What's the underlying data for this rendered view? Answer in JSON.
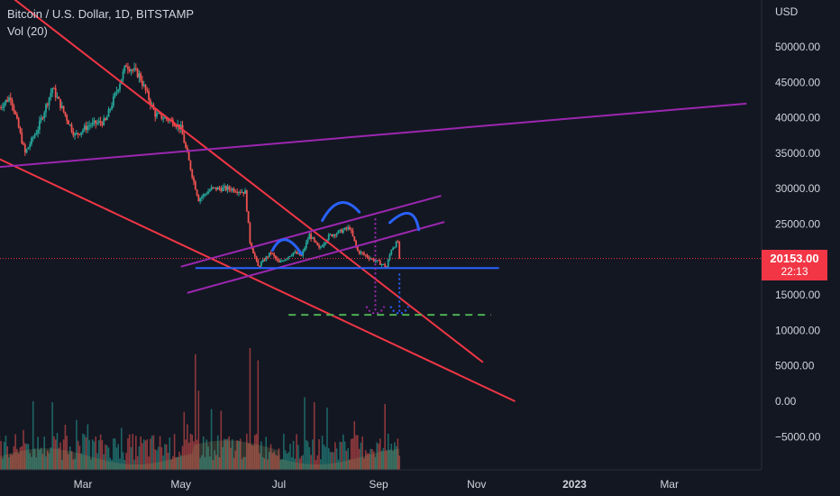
{
  "header": {
    "symbol": "Bitcoin / U.S. Dollar, 1D, BITSTAMP",
    "volume_indicator": "Vol (20)"
  },
  "axis": {
    "currency": "USD"
  },
  "price_badge": {
    "price": "20153.00",
    "countdown": "22:13",
    "color": "#f23645"
  },
  "colors": {
    "background": "#131722",
    "up": "#26a69a",
    "down": "#ef5350",
    "channel": "#f23645",
    "trend_purple": "#9c27b0",
    "support_blue": "#2962ff",
    "target_green": "#4caf50"
  },
  "chart_data": {
    "type": "candlestick",
    "title": "Bitcoin / U.S. Dollar, 1D, BITSTAMP",
    "ylabel": "USD",
    "ylim": [
      -8000,
      56000
    ],
    "yticks": [
      "50000.00",
      "45000.00",
      "40000.00",
      "35000.00",
      "30000.00",
      "25000.00",
      "20000.00",
      "15000.00",
      "10000.00",
      "5000.00",
      "0.00",
      "−5000.00"
    ],
    "ytick_values": [
      50000,
      45000,
      40000,
      35000,
      30000,
      25000,
      20000,
      15000,
      10000,
      5000,
      0,
      -5000
    ],
    "xticks": [
      {
        "label": "Mar",
        "date": "2022-03-01"
      },
      {
        "label": "May",
        "date": "2022-05-01"
      },
      {
        "label": "Jul",
        "date": "2022-07-01"
      },
      {
        "label": "Sep",
        "date": "2022-09-01"
      },
      {
        "label": "Nov",
        "date": "2022-11-01"
      },
      {
        "label": "2023",
        "date": "2023-01-01"
      },
      {
        "label": "Mar",
        "date": "2023-03-01"
      }
    ],
    "x_range": [
      "2022-01-08",
      "2023-04-18"
    ],
    "grid": false,
    "last_price": 20153,
    "price_path": [
      {
        "date": "2022-01-08",
        "price": 41500
      },
      {
        "date": "2022-01-15",
        "price": 43000
      },
      {
        "date": "2022-01-24",
        "price": 35000
      },
      {
        "date": "2022-02-01",
        "price": 38500
      },
      {
        "date": "2022-02-10",
        "price": 44200
      },
      {
        "date": "2022-02-24",
        "price": 37500
      },
      {
        "date": "2022-03-05",
        "price": 39000
      },
      {
        "date": "2022-03-15",
        "price": 39500
      },
      {
        "date": "2022-03-28",
        "price": 47500
      },
      {
        "date": "2022-04-05",
        "price": 46000
      },
      {
        "date": "2022-04-15",
        "price": 40500
      },
      {
        "date": "2022-04-26",
        "price": 39500
      },
      {
        "date": "2022-05-01",
        "price": 38500
      },
      {
        "date": "2022-05-09",
        "price": 31000
      },
      {
        "date": "2022-05-12",
        "price": 28500
      },
      {
        "date": "2022-05-20",
        "price": 30000
      },
      {
        "date": "2022-06-01",
        "price": 30000
      },
      {
        "date": "2022-06-10",
        "price": 29500
      },
      {
        "date": "2022-06-13",
        "price": 22500
      },
      {
        "date": "2022-06-18",
        "price": 19000
      },
      {
        "date": "2022-06-26",
        "price": 21000
      },
      {
        "date": "2022-07-01",
        "price": 19500
      },
      {
        "date": "2022-07-10",
        "price": 21000
      },
      {
        "date": "2022-07-15",
        "price": 20500
      },
      {
        "date": "2022-07-20",
        "price": 23500
      },
      {
        "date": "2022-07-26",
        "price": 21500
      },
      {
        "date": "2022-08-01",
        "price": 23300
      },
      {
        "date": "2022-08-14",
        "price": 24500
      },
      {
        "date": "2022-08-19",
        "price": 21200
      },
      {
        "date": "2022-08-26",
        "price": 20300
      },
      {
        "date": "2022-09-06",
        "price": 19000
      },
      {
        "date": "2022-09-09",
        "price": 21500
      },
      {
        "date": "2022-09-13",
        "price": 22500
      },
      {
        "date": "2022-09-14",
        "price": 20153
      }
    ],
    "volume": {
      "name": "Vol (20)",
      "spikes": [
        {
          "date": "2022-05-10",
          "value": 0.95
        },
        {
          "date": "2022-06-13",
          "value": 1.0
        },
        {
          "date": "2022-06-18",
          "value": 0.9
        },
        {
          "date": "2022-05-12",
          "value": 0.65
        }
      ]
    },
    "drawings": [
      {
        "kind": "trendline",
        "color": "#f23645",
        "from": {
          "date": "2022-01-10",
          "price": 58000
        },
        "to": {
          "date": "2022-11-05",
          "price": 5500
        }
      },
      {
        "kind": "trendline",
        "color": "#f23645",
        "from": {
          "date": "2022-01-05",
          "price": 34500
        },
        "to": {
          "date": "2022-11-25",
          "price": 0
        }
      },
      {
        "kind": "trendline",
        "color": "#9c27b0",
        "from": {
          "date": "2022-01-05",
          "price": 33000
        },
        "to": {
          "date": "2023-04-18",
          "price": 42000
        }
      },
      {
        "kind": "trendline",
        "color": "#9c27b0",
        "from": {
          "date": "2022-05-01",
          "price": 19000
        },
        "to": {
          "date": "2022-10-10",
          "price": 29000
        }
      },
      {
        "kind": "trendline",
        "color": "#9c27b0",
        "from": {
          "date": "2022-05-05",
          "price": 15300
        },
        "to": {
          "date": "2022-10-12",
          "price": 25300
        }
      },
      {
        "kind": "horizontal",
        "color": "#2962ff",
        "price": 18800,
        "from": "2022-05-10",
        "to": "2022-11-15"
      },
      {
        "kind": "horizontal_dashed",
        "color": "#4caf50",
        "price": 12200,
        "from": "2022-07-07",
        "to": "2022-11-10"
      },
      {
        "kind": "arc",
        "color": "#2962ff",
        "from": {
          "date": "2022-06-27",
          "price": 21300
        },
        "peak": {
          "date": "2022-07-05",
          "price": 22800
        },
        "to": {
          "date": "2022-07-15",
          "price": 20800
        }
      },
      {
        "kind": "arc",
        "color": "#2962ff",
        "from": {
          "date": "2022-07-28",
          "price": 25500
        },
        "peak": {
          "date": "2022-08-08",
          "price": 28000
        },
        "to": {
          "date": "2022-08-20",
          "price": 26700
        }
      },
      {
        "kind": "arc",
        "color": "#2962ff",
        "from": {
          "date": "2022-09-08",
          "price": 25200
        },
        "peak": {
          "date": "2022-09-20",
          "price": 26500
        },
        "to": {
          "date": "2022-09-26",
          "price": 24200
        }
      },
      {
        "kind": "dotted_arrow",
        "color": "#9c27b0",
        "date": "2022-08-30",
        "from_price": 25800,
        "to_price": 12500
      },
      {
        "kind": "dotted_arrow",
        "color": "#2962ff",
        "date": "2022-09-14",
        "from_price": 18000,
        "to_price": 12500
      }
    ]
  }
}
